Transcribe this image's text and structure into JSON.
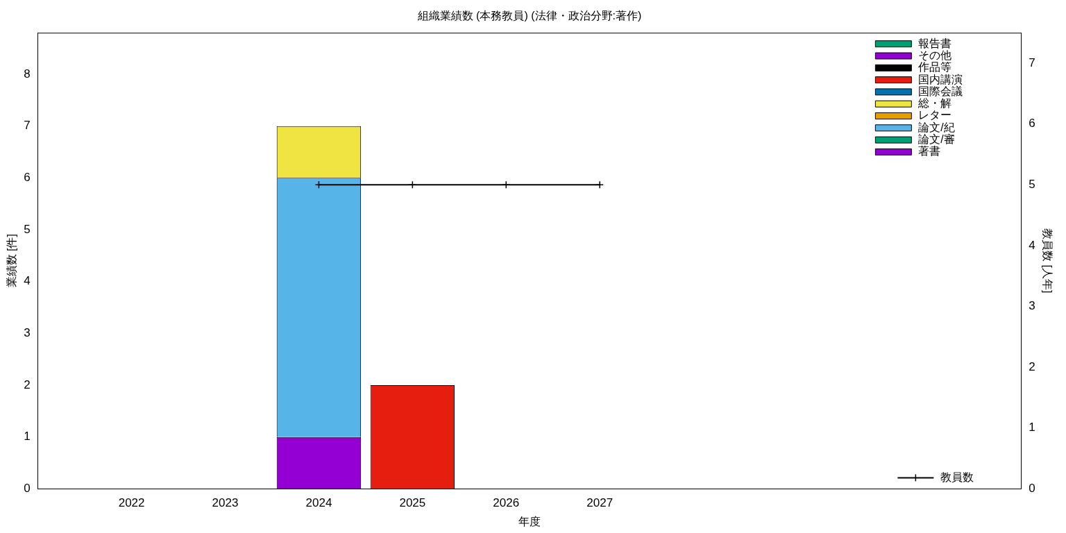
{
  "chart_data": {
    "type": "bar",
    "title": "組織業績数 (本務教員) (法律・政治分野:著作)",
    "xlabel": "年度",
    "ylabel": "業績数 [件]",
    "y2label": "教員数 [人年]",
    "x": [
      2022,
      2023,
      2024,
      2025,
      2026,
      2027
    ],
    "xlim": [
      2021,
      2031.5
    ],
    "xticks": [
      2022,
      2023,
      2024,
      2025,
      2026,
      2027
    ],
    "ylim": [
      0,
      8.8
    ],
    "yticks": [
      0,
      1,
      2,
      3,
      4,
      5,
      6,
      7,
      8
    ],
    "y2lim": [
      0,
      7.5
    ],
    "y2ticks": [
      0,
      1,
      2,
      3,
      4,
      5,
      6,
      7
    ],
    "stacked": true,
    "grid": false,
    "legend": "top right",
    "series": [
      {
        "name": "著書",
        "color": "#9400d3",
        "values": [
          0,
          0,
          1,
          0,
          0,
          0
        ]
      },
      {
        "name": "論文/審",
        "color": "#009e73",
        "values": [
          0,
          0,
          0,
          0,
          0,
          0
        ]
      },
      {
        "name": "論文/紀",
        "color": "#56b4e9",
        "values": [
          0,
          0,
          5,
          0,
          0,
          0
        ]
      },
      {
        "name": "レター",
        "color": "#e69f00",
        "values": [
          0,
          0,
          0,
          0,
          0,
          0
        ]
      },
      {
        "name": "総・解",
        "color": "#f0e442",
        "values": [
          0,
          0,
          1,
          0,
          0,
          0
        ]
      },
      {
        "name": "国際会議",
        "color": "#0072b2",
        "values": [
          0,
          0,
          0,
          0,
          0,
          0
        ]
      },
      {
        "name": "国内講演",
        "color": "#e51e10",
        "values": [
          0,
          0,
          0,
          2,
          0,
          0
        ]
      },
      {
        "name": "作品等",
        "color": "#000000",
        "values": [
          0,
          0,
          0,
          0,
          0,
          0
        ]
      },
      {
        "name": "その他",
        "color": "#9400d3",
        "values": [
          0,
          0,
          0,
          0,
          0,
          0
        ]
      },
      {
        "name": "報告書",
        "color": "#009e73",
        "values": [
          0,
          0,
          0,
          0,
          0,
          0
        ]
      },
      {
        "name": "教員数",
        "type": "line",
        "axis": "y2",
        "color": "#000000",
        "marker": "cross",
        "line_style": "solid",
        "x": [
          2024,
          2025,
          2026,
          2027
        ],
        "values": [
          5,
          5,
          5,
          5
        ]
      }
    ]
  }
}
